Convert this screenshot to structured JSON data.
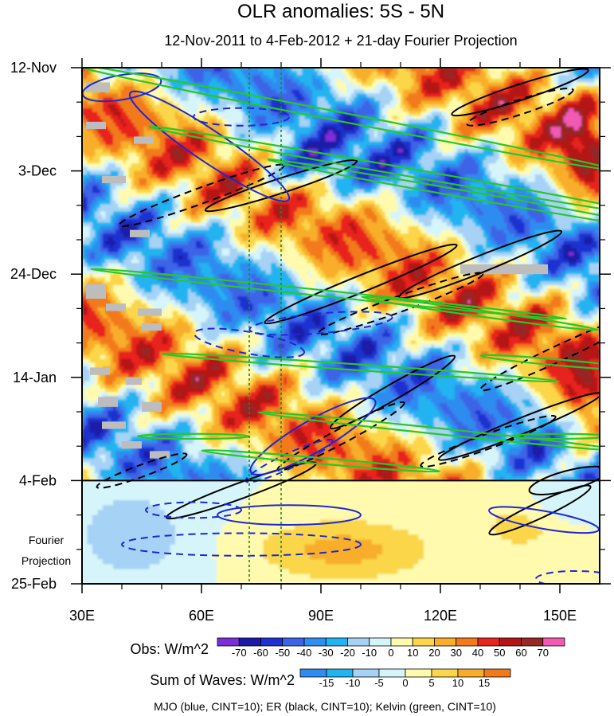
{
  "chart_data": {
    "type": "heatmap",
    "title": "OLR anomalies: 5S - 5N",
    "subtitle": "12-Nov-2011 to 4-Feb-2012 + 21-day Fourier Projection",
    "x_axis": {
      "range": [
        30,
        160
      ],
      "ticks": [
        30,
        60,
        90,
        120,
        150
      ],
      "tick_labels": [
        "30E",
        "60E",
        "90E",
        "120E",
        "150E"
      ]
    },
    "y_axis": {
      "range_days": [
        0,
        105
      ],
      "ticks": [
        0,
        21,
        42,
        63,
        84,
        105
      ],
      "tick_labels": [
        "12-Nov",
        "3-Dec",
        "24-Dec",
        "14-Jan",
        "4-Feb",
        "25-Feb"
      ]
    },
    "projection_start_day": 84,
    "projection_label": [
      "Fourier",
      "Projection"
    ],
    "reference_lines_lon": [
      72,
      80
    ],
    "obs_colorbar": {
      "label": "Obs: W/m^2",
      "levels": [
        -70,
        -60,
        -50,
        -40,
        -30,
        -20,
        -10,
        0,
        10,
        20,
        30,
        40,
        50,
        60,
        70
      ],
      "colors": [
        "#7b2fd8",
        "#1a1aa6",
        "#1e32d0",
        "#3c64e6",
        "#2f8cf0",
        "#22b4f0",
        "#a6d2f5",
        "#d6f5fb",
        "#fffaae",
        "#fbd64a",
        "#f8ae2a",
        "#f27a1a",
        "#e8241c",
        "#b41414",
        "#962828",
        "#f05ab4"
      ]
    },
    "waves_colorbar": {
      "label": "Sum of Waves: W/m^2",
      "levels": [
        -15,
        -10,
        -5,
        0,
        5,
        10,
        15
      ],
      "colors": [
        "#2f8cf0",
        "#22b4f0",
        "#a6d2f5",
        "#d6f5fb",
        "#fffaae",
        "#fbd64a",
        "#f8ae2a",
        "#f27a1a"
      ]
    },
    "contour_legend": "MJO (blue, CINT=10); ER (black, CINT=10); Kelvin (green, CINT=10)",
    "series": [
      {
        "name": "MJO",
        "color": "#1e28d2"
      },
      {
        "name": "ER",
        "color": "#000000"
      },
      {
        "name": "Kelvin",
        "color": "#28c828"
      }
    ]
  }
}
